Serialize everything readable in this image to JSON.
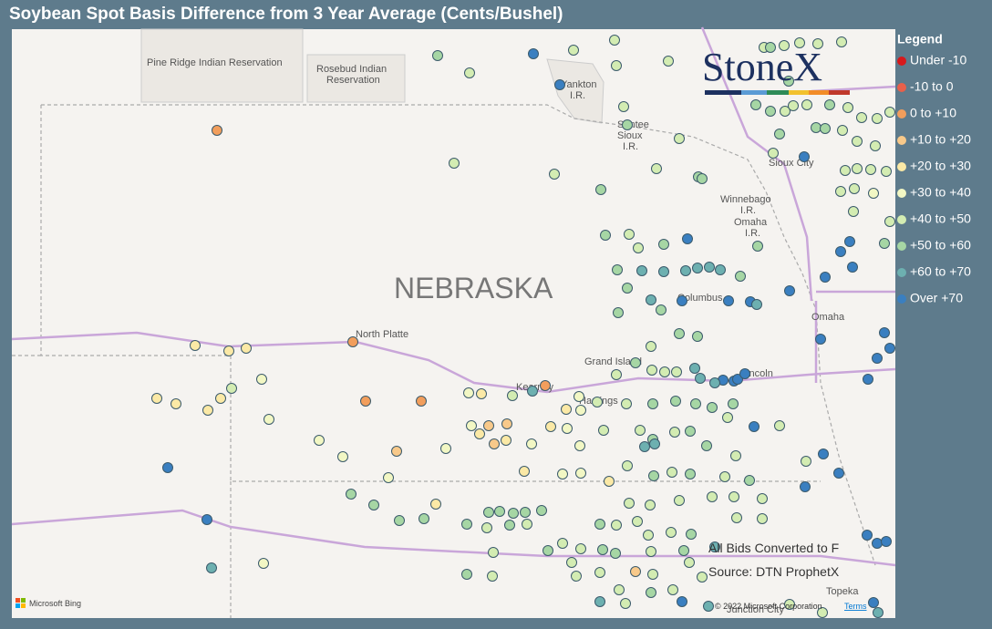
{
  "title": "Soybean Spot Basis Difference from 3 Year Average (Cents/Bushel)",
  "legend": {
    "title": "Legend",
    "items": [
      {
        "label": "Under -10",
        "color": "#d7191c"
      },
      {
        "label": "-10 to 0",
        "color": "#e8604a"
      },
      {
        "label": "0 to +10",
        "color": "#f29e5c"
      },
      {
        "label": "+10 to +20",
        "color": "#f8c98a"
      },
      {
        "label": "+20 to +30",
        "color": "#fbe9a6"
      },
      {
        "label": "+30 to +40",
        "color": "#f2f7c4"
      },
      {
        "label": "+40 to +50",
        "color": "#d3ecb2"
      },
      {
        "label": "+50 to +60",
        "color": "#a6d6a4"
      },
      {
        "label": "+60 to +70",
        "color": "#6db0b0"
      },
      {
        "label": "Over +70",
        "color": "#3a7fc0"
      }
    ]
  },
  "logo": "StoneX",
  "map_labels": [
    "Pine Ridge Indian Reservation",
    [
      "Rosebud Indian",
      "Reservation"
    ],
    [
      "Yankton",
      "I.R."
    ],
    [
      "Santee",
      "Sioux",
      "I.R."
    ],
    "Sioux City",
    [
      "Winnebago",
      "I.R."
    ],
    [
      "Omaha",
      "I.R."
    ],
    "NEBRASKA",
    "Columbus",
    "Omaha",
    "North Platte",
    "Grand Island",
    "Kearney",
    "Hastings",
    "Lincoln",
    "Topeka",
    "Junction City"
  ],
  "notes": [
    "All Bids Converted to F",
    "Source: DTN ProphetX"
  ],
  "attribution": {
    "bing": "Microsoft Bing",
    "copyright": "© 2022 Microsoft Corporation",
    "terms": "Terms"
  }
}
